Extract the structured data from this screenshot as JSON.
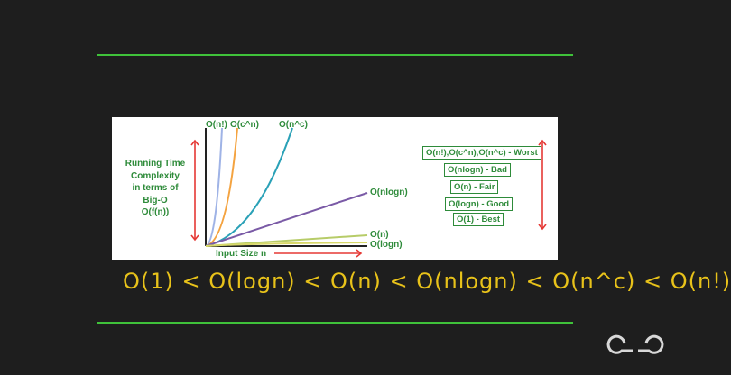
{
  "diagram": {
    "ylabel_lines": [
      "Running Time",
      "Complexity",
      "in terms of",
      "Big-O",
      "O(f(n))"
    ],
    "xlabel": "Input Size n",
    "curves": [
      {
        "name": "O(n!)",
        "color": "#9fb3e6"
      },
      {
        "name": "O(c^n)",
        "color": "#f4a340"
      },
      {
        "name": "O(n^c)",
        "color": "#2aa1b7"
      },
      {
        "name": "O(nlogn)",
        "color": "#7a5aa6"
      },
      {
        "name": "O(n)",
        "color": "#b7cc68"
      },
      {
        "name": "O(logn)",
        "color": "#d8d86a"
      }
    ],
    "legend": [
      {
        "text": "O(n!),O(c^n),O(n^c) - Worst"
      },
      {
        "text": "O(nlogn) - Bad"
      },
      {
        "text": "O(n) - Fair"
      },
      {
        "text": "O(logn) - Good"
      },
      {
        "text": "O(1) - Best"
      }
    ]
  },
  "handwritten_text": "O(1) < O(logn) < O(n) < O(nlogn) < O(n^c) < O(n!)",
  "logo_text": "GfG",
  "colors": {
    "green_line": "#3fc23a",
    "label_green": "#2e8b3a",
    "arrow_red": "#e53935",
    "handwriting": "#e8c21a"
  }
}
